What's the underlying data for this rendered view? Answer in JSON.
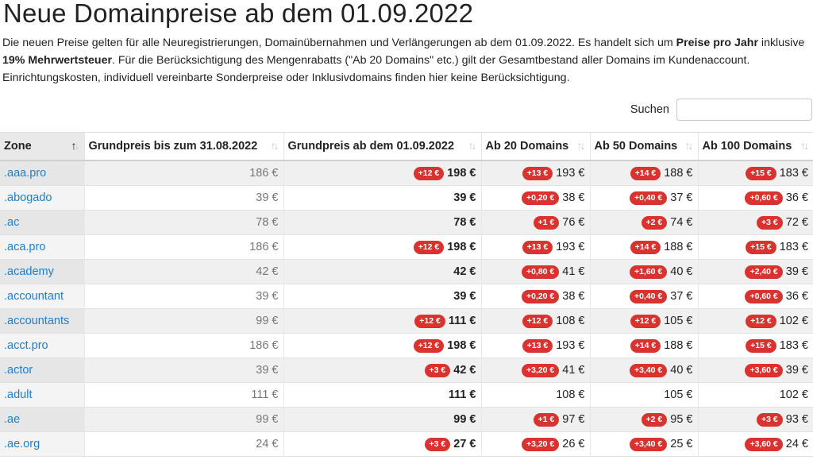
{
  "title": "Neue Domainpreise ab dem 01.09.2022",
  "intro": {
    "p1": "Die neuen Preise gelten für alle Neuregistrierungen, Domainübernahmen und Verlängerungen ab dem 01.09.2022. Es handelt sich um ",
    "b1": "Preise pro Jahr",
    "p2": " inklusive ",
    "b2": "19% Mehrwertsteuer",
    "p3": ". Für die Berücksichtigung des Mengenrabatts (\"Ab 20 Domains\" etc.) gilt der Gesamtbestand aller Domains im Kundenaccount. Einrichtungskosten, individuell vereinbarte Sonderpreise oder Inklusivdomains finden hier keine Berücksichtigung."
  },
  "search": {
    "label": "Suchen",
    "value": ""
  },
  "columns": [
    "Zone",
    "Grundpreis bis zum 31.08.2022",
    "Grundpreis ab dem 01.09.2022",
    "Ab 20 Domains",
    "Ab 50 Domains",
    "Ab 100 Domains"
  ],
  "rows": [
    {
      "zone": ".aaa.pro",
      "old": "186 €",
      "new": "198 €",
      "new_badge": "+12 €",
      "p20": "193 €",
      "p20_badge": "+13 €",
      "p50": "188 €",
      "p50_badge": "+14 €",
      "p100": "183 €",
      "p100_badge": "+15 €"
    },
    {
      "zone": ".abogado",
      "old": "39 €",
      "new": "39 €",
      "new_badge": "",
      "p20": "38 €",
      "p20_badge": "+0,20 €",
      "p50": "37 €",
      "p50_badge": "+0,40 €",
      "p100": "36 €",
      "p100_badge": "+0,60 €"
    },
    {
      "zone": ".ac",
      "old": "78 €",
      "new": "78 €",
      "new_badge": "",
      "p20": "76 €",
      "p20_badge": "+1 €",
      "p50": "74 €",
      "p50_badge": "+2 €",
      "p100": "72 €",
      "p100_badge": "+3 €"
    },
    {
      "zone": ".aca.pro",
      "old": "186 €",
      "new": "198 €",
      "new_badge": "+12 €",
      "p20": "193 €",
      "p20_badge": "+13 €",
      "p50": "188 €",
      "p50_badge": "+14 €",
      "p100": "183 €",
      "p100_badge": "+15 €"
    },
    {
      "zone": ".academy",
      "old": "42 €",
      "new": "42 €",
      "new_badge": "",
      "p20": "41 €",
      "p20_badge": "+0,80 €",
      "p50": "40 €",
      "p50_badge": "+1,60 €",
      "p100": "39 €",
      "p100_badge": "+2,40 €"
    },
    {
      "zone": ".accountant",
      "old": "39 €",
      "new": "39 €",
      "new_badge": "",
      "p20": "38 €",
      "p20_badge": "+0,20 €",
      "p50": "37 €",
      "p50_badge": "+0,40 €",
      "p100": "36 €",
      "p100_badge": "+0,60 €"
    },
    {
      "zone": ".accountants",
      "old": "99 €",
      "new": "111 €",
      "new_badge": "+12 €",
      "p20": "108 €",
      "p20_badge": "+12 €",
      "p50": "105 €",
      "p50_badge": "+12 €",
      "p100": "102 €",
      "p100_badge": "+12 €"
    },
    {
      "zone": ".acct.pro",
      "old": "186 €",
      "new": "198 €",
      "new_badge": "+12 €",
      "p20": "193 €",
      "p20_badge": "+13 €",
      "p50": "188 €",
      "p50_badge": "+14 €",
      "p100": "183 €",
      "p100_badge": "+15 €"
    },
    {
      "zone": ".actor",
      "old": "39 €",
      "new": "42 €",
      "new_badge": "+3 €",
      "p20": "41 €",
      "p20_badge": "+3,20 €",
      "p50": "40 €",
      "p50_badge": "+3,40 €",
      "p100": "39 €",
      "p100_badge": "+3,60 €"
    },
    {
      "zone": ".adult",
      "old": "111 €",
      "new": "111 €",
      "new_badge": "",
      "p20": "108 €",
      "p20_badge": "",
      "p50": "105 €",
      "p50_badge": "",
      "p100": "102 €",
      "p100_badge": ""
    },
    {
      "zone": ".ae",
      "old": "99 €",
      "new": "99 €",
      "new_badge": "",
      "p20": "97 €",
      "p20_badge": "+1 €",
      "p50": "95 €",
      "p50_badge": "+2 €",
      "p100": "93 €",
      "p100_badge": "+3 €"
    },
    {
      "zone": ".ae.org",
      "old": "24 €",
      "new": "27 €",
      "new_badge": "+3 €",
      "p20": "26 €",
      "p20_badge": "+3,20 €",
      "p50": "25 €",
      "p50_badge": "+3,40 €",
      "p100": "24 €",
      "p100_badge": "+3,60 €"
    }
  ],
  "colors": {
    "link": "#1a7fd1",
    "badge": "#d9322f",
    "stripe": "#f0f0f0"
  },
  "sort": {
    "active_icon": "sort-asc-icon",
    "inactive_icon": "sort-both-icon"
  }
}
